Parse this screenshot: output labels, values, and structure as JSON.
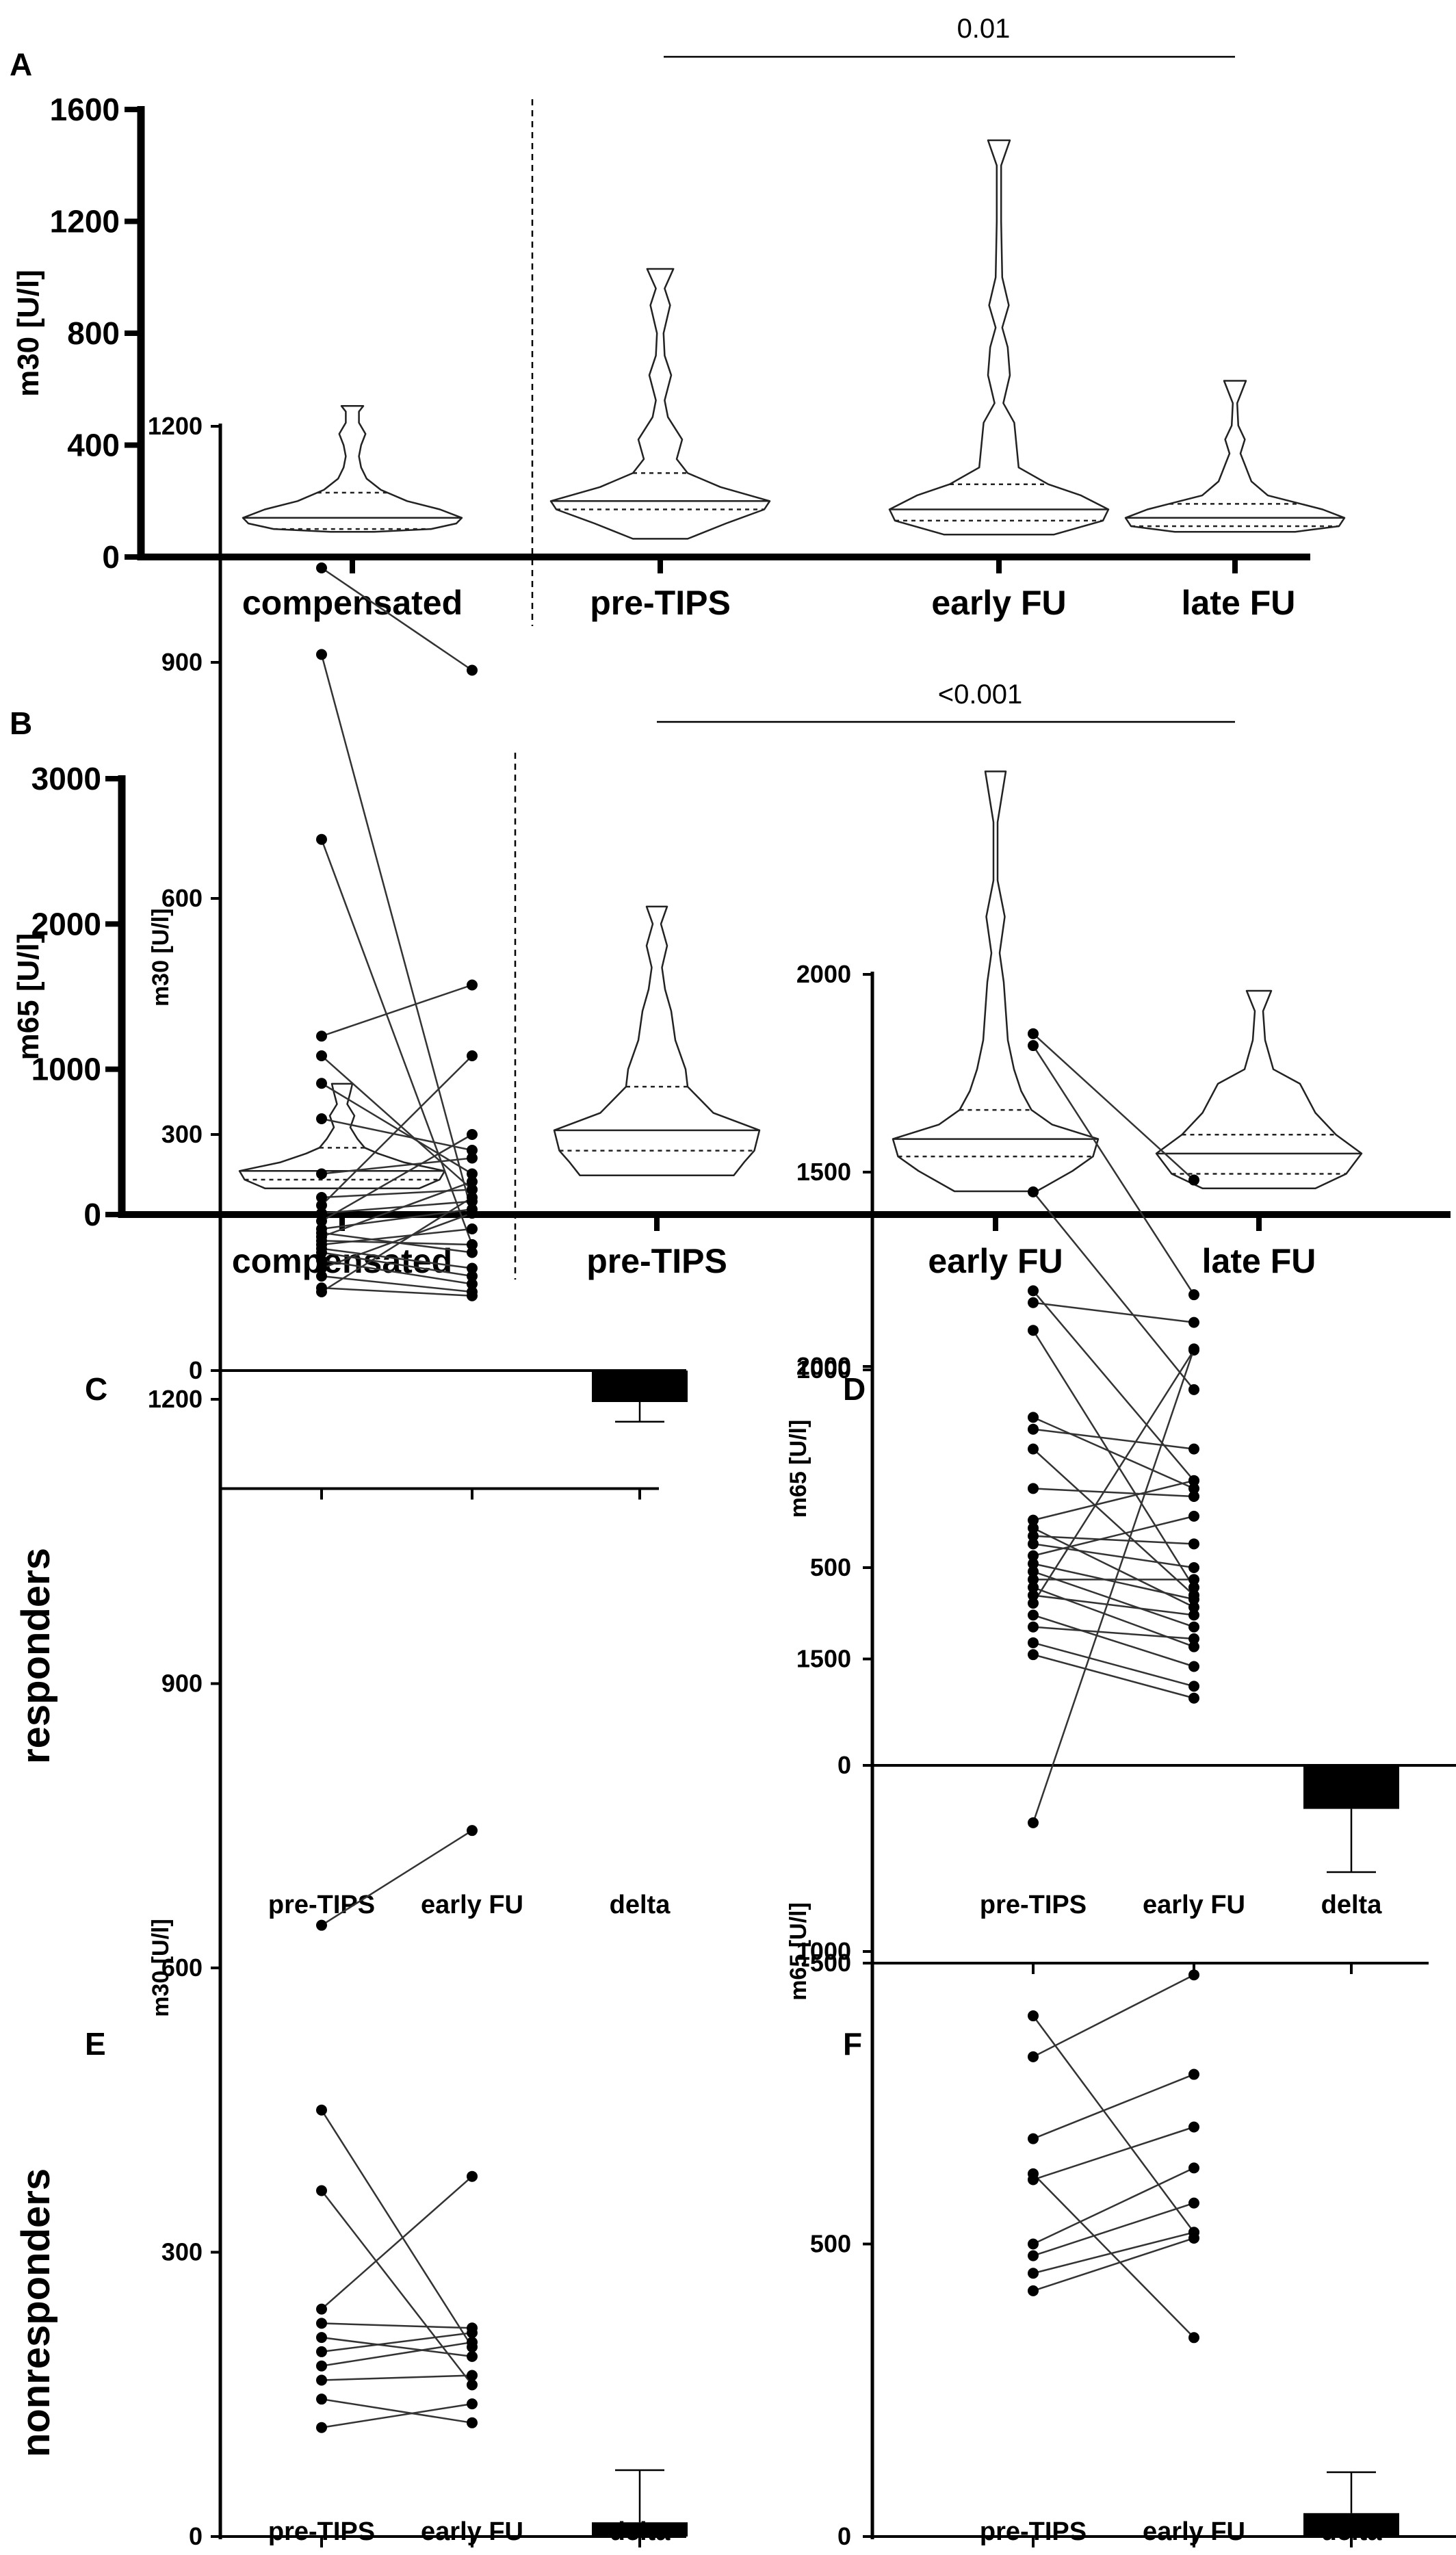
{
  "figure": {
    "row_labels": [
      "responders",
      "nonresponders"
    ]
  },
  "chart_data": [
    {
      "panel": "A",
      "type": "violin",
      "ylabel": "m30 [U/l]",
      "ylim": [
        0,
        1600
      ],
      "yticks": [
        0,
        400,
        800,
        1200,
        1600
      ],
      "categories": [
        "compensated",
        "pre-TIPS",
        "early FU",
        "late FU"
      ],
      "annotation": {
        "text": "0.01",
        "from": "pre-TIPS",
        "to": "late FU"
      },
      "groups": [
        {
          "name": "compensated",
          "min": 90,
          "q1": 100,
          "median": 140,
          "q3": 230,
          "max": 540,
          "profile": [
            [
              90,
              0.2
            ],
            [
              100,
              0.72
            ],
            [
              120,
              0.95
            ],
            [
              140,
              1.0
            ],
            [
              170,
              0.8
            ],
            [
              200,
              0.5
            ],
            [
              240,
              0.26
            ],
            [
              280,
              0.13
            ],
            [
              320,
              0.08
            ],
            [
              360,
              0.06
            ],
            [
              400,
              0.08
            ],
            [
              440,
              0.12
            ],
            [
              480,
              0.06
            ],
            [
              520,
              0.06
            ],
            [
              540,
              0.1
            ]
          ]
        },
        {
          "name": "pre-TIPS",
          "min": 65,
          "q1": 170,
          "median": 200,
          "q3": 300,
          "max": 1030,
          "profile": [
            [
              65,
              0.25
            ],
            [
              120,
              0.6
            ],
            [
              170,
              0.95
            ],
            [
              200,
              1.0
            ],
            [
              250,
              0.55
            ],
            [
              300,
              0.25
            ],
            [
              350,
              0.15
            ],
            [
              420,
              0.2
            ],
            [
              500,
              0.07
            ],
            [
              560,
              0.04
            ],
            [
              650,
              0.1
            ],
            [
              720,
              0.04
            ],
            [
              800,
              0.03
            ],
            [
              900,
              0.09
            ],
            [
              960,
              0.04
            ],
            [
              1030,
              0.12
            ]
          ]
        },
        {
          "name": "early FU",
          "min": 80,
          "q1": 130,
          "median": 170,
          "q3": 260,
          "max": 1490,
          "profile": [
            [
              80,
              0.5
            ],
            [
              130,
              0.95
            ],
            [
              170,
              1.0
            ],
            [
              220,
              0.75
            ],
            [
              260,
              0.45
            ],
            [
              320,
              0.18
            ],
            [
              400,
              0.16
            ],
            [
              480,
              0.14
            ],
            [
              550,
              0.04
            ],
            [
              650,
              0.1
            ],
            [
              750,
              0.08
            ],
            [
              820,
              0.03
            ],
            [
              900,
              0.09
            ],
            [
              1000,
              0.03
            ],
            [
              1200,
              0.02
            ],
            [
              1400,
              0.02
            ],
            [
              1490,
              0.1
            ]
          ]
        },
        {
          "name": "late FU",
          "min": 90,
          "q1": 110,
          "median": 140,
          "q3": 190,
          "max": 630,
          "profile": [
            [
              90,
              0.55
            ],
            [
              110,
              0.95
            ],
            [
              140,
              1.0
            ],
            [
              170,
              0.8
            ],
            [
              190,
              0.6
            ],
            [
              220,
              0.3
            ],
            [
              270,
              0.15
            ],
            [
              300,
              0.12
            ],
            [
              330,
              0.09
            ],
            [
              370,
              0.05
            ],
            [
              420,
              0.09
            ],
            [
              470,
              0.03
            ],
            [
              550,
              0.02
            ],
            [
              630,
              0.1
            ]
          ]
        }
      ]
    },
    {
      "panel": "B",
      "type": "violin",
      "ylabel": "m65 [U/l]",
      "ylim": [
        0,
        3000
      ],
      "yticks": [
        0,
        1000,
        2000,
        3000
      ],
      "categories": [
        "compensated",
        "pre-TIPS",
        "early FU",
        "late FU"
      ],
      "annotation": {
        "text": "<0.001",
        "from": "pre-TIPS",
        "to": "late FU"
      },
      "groups": [
        {
          "name": "compensated",
          "min": 180,
          "q1": 240,
          "median": 300,
          "q3": 460,
          "max": 900,
          "profile": [
            [
              180,
              0.75
            ],
            [
              240,
              0.95
            ],
            [
              300,
              1.0
            ],
            [
              360,
              0.6
            ],
            [
              420,
              0.35
            ],
            [
              460,
              0.22
            ],
            [
              520,
              0.15
            ],
            [
              600,
              0.08
            ],
            [
              680,
              0.12
            ],
            [
              760,
              0.05
            ],
            [
              840,
              0.08
            ],
            [
              900,
              0.1
            ]
          ]
        },
        {
          "name": "pre-TIPS",
          "min": 270,
          "q1": 440,
          "median": 580,
          "q3": 880,
          "max": 2120,
          "profile": [
            [
              270,
              0.75
            ],
            [
              360,
              0.85
            ],
            [
              440,
              0.95
            ],
            [
              580,
              1.0
            ],
            [
              700,
              0.55
            ],
            [
              880,
              0.3
            ],
            [
              1000,
              0.28
            ],
            [
              1200,
              0.18
            ],
            [
              1400,
              0.14
            ],
            [
              1550,
              0.08
            ],
            [
              1700,
              0.05
            ],
            [
              1850,
              0.1
            ],
            [
              2000,
              0.04
            ],
            [
              2120,
              0.1
            ]
          ]
        },
        {
          "name": "early FU",
          "min": 160,
          "q1": 400,
          "median": 520,
          "q3": 720,
          "max": 3050,
          "profile": [
            [
              160,
              0.4
            ],
            [
              300,
              0.75
            ],
            [
              400,
              0.95
            ],
            [
              520,
              1.0
            ],
            [
              620,
              0.55
            ],
            [
              720,
              0.35
            ],
            [
              850,
              0.25
            ],
            [
              1000,
              0.18
            ],
            [
              1200,
              0.12
            ],
            [
              1400,
              0.1
            ],
            [
              1600,
              0.08
            ],
            [
              1800,
              0.04
            ],
            [
              2050,
              0.09
            ],
            [
              2300,
              0.02
            ],
            [
              2700,
              0.02
            ],
            [
              3050,
              0.1
            ]
          ]
        },
        {
          "name": "late FU",
          "min": 180,
          "q1": 280,
          "median": 420,
          "q3": 550,
          "max": 1540,
          "profile": [
            [
              180,
              0.55
            ],
            [
              280,
              0.85
            ],
            [
              420,
              1.0
            ],
            [
              550,
              0.75
            ],
            [
              700,
              0.55
            ],
            [
              900,
              0.4
            ],
            [
              1000,
              0.14
            ],
            [
              1200,
              0.06
            ],
            [
              1400,
              0.04
            ],
            [
              1540,
              0.12
            ]
          ]
        }
      ]
    },
    {
      "panel": "C",
      "type": "paired-scatter",
      "ylabel": "m30 [U/l]",
      "ylim": [
        -150,
        1200
      ],
      "yticks": [
        0,
        300,
        600,
        900,
        1200
      ],
      "categories": [
        "pre-TIPS",
        "early FU",
        "delta"
      ],
      "pairs": [
        [
          1020,
          890
        ],
        [
          910,
          200
        ],
        [
          675,
          160
        ],
        [
          425,
          490
        ],
        [
          400,
          230
        ],
        [
          365,
          250
        ],
        [
          320,
          280
        ],
        [
          250,
          270
        ],
        [
          220,
          230
        ],
        [
          210,
          400
        ],
        [
          200,
          215
        ],
        [
          190,
          300
        ],
        [
          180,
          205
        ],
        [
          175,
          150
        ],
        [
          170,
          240
        ],
        [
          165,
          160
        ],
        [
          160,
          180
        ],
        [
          155,
          130
        ],
        [
          150,
          120
        ],
        [
          140,
          110
        ],
        [
          130,
          200
        ],
        [
          120,
          100
        ],
        [
          105,
          95
        ],
        [
          100,
          220
        ]
      ],
      "delta": {
        "mean": -40,
        "lower": -65,
        "upper": -15
      }
    },
    {
      "panel": "D",
      "type": "paired-scatter",
      "ylabel": "m65 [U/l]",
      "ylim": [
        -500,
        2000
      ],
      "yticks": [
        -500,
        0,
        500,
        1000,
        1500,
        2000
      ],
      "categories": [
        "pre-TIPS",
        "early FU",
        "delta"
      ],
      "pairs": [
        [
          1850,
          1480
        ],
        [
          1820,
          1190
        ],
        [
          1450,
          950
        ],
        [
          1200,
          720
        ],
        [
          1170,
          1120
        ],
        [
          1100,
          450
        ],
        [
          880,
          700
        ],
        [
          850,
          800
        ],
        [
          800,
          430
        ],
        [
          700,
          680
        ],
        [
          620,
          720
        ],
        [
          600,
          400
        ],
        [
          580,
          560
        ],
        [
          560,
          500
        ],
        [
          530,
          630
        ],
        [
          510,
          420
        ],
        [
          490,
          350
        ],
        [
          470,
          470
        ],
        [
          450,
          300
        ],
        [
          430,
          380
        ],
        [
          410,
          1050
        ],
        [
          380,
          250
        ],
        [
          350,
          320
        ],
        [
          310,
          200
        ],
        [
          280,
          170
        ]
      ],
      "delta": {
        "mean": -110,
        "lower": -270,
        "upper": 50
      }
    },
    {
      "panel": "E",
      "type": "paired-scatter",
      "ylabel": "m30 [U/l]",
      "ylim": [
        0,
        1200
      ],
      "yticks": [
        0,
        300,
        600,
        900,
        1200
      ],
      "categories": [
        "pre-TIPS",
        "early FU",
        "delta"
      ],
      "pairs": [
        [
          645,
          745
        ],
        [
          450,
          200
        ],
        [
          365,
          160
        ],
        [
          240,
          380
        ],
        [
          225,
          220
        ],
        [
          210,
          190
        ],
        [
          195,
          215
        ],
        [
          180,
          205
        ],
        [
          165,
          170
        ],
        [
          145,
          120
        ],
        [
          115,
          140
        ]
      ],
      "delta": {
        "mean": 15,
        "lower": 0,
        "upper": 70
      }
    },
    {
      "panel": "F",
      "type": "paired-scatter",
      "ylabel": "m65 [U/l]",
      "ylim": [
        0,
        2000
      ],
      "yticks": [
        0,
        500,
        1000,
        1500,
        2000
      ],
      "categories": [
        "pre-TIPS",
        "early FU",
        "delta"
      ],
      "pairs": [
        [
          1220,
          2030
        ],
        [
          890,
          520
        ],
        [
          820,
          960
        ],
        [
          680,
          790
        ],
        [
          620,
          340
        ],
        [
          610,
          700
        ],
        [
          500,
          630
        ],
        [
          480,
          570
        ],
        [
          450,
          520
        ],
        [
          420,
          510
        ]
      ],
      "delta": {
        "mean": 40,
        "lower": 0,
        "upper": 110
      }
    }
  ]
}
